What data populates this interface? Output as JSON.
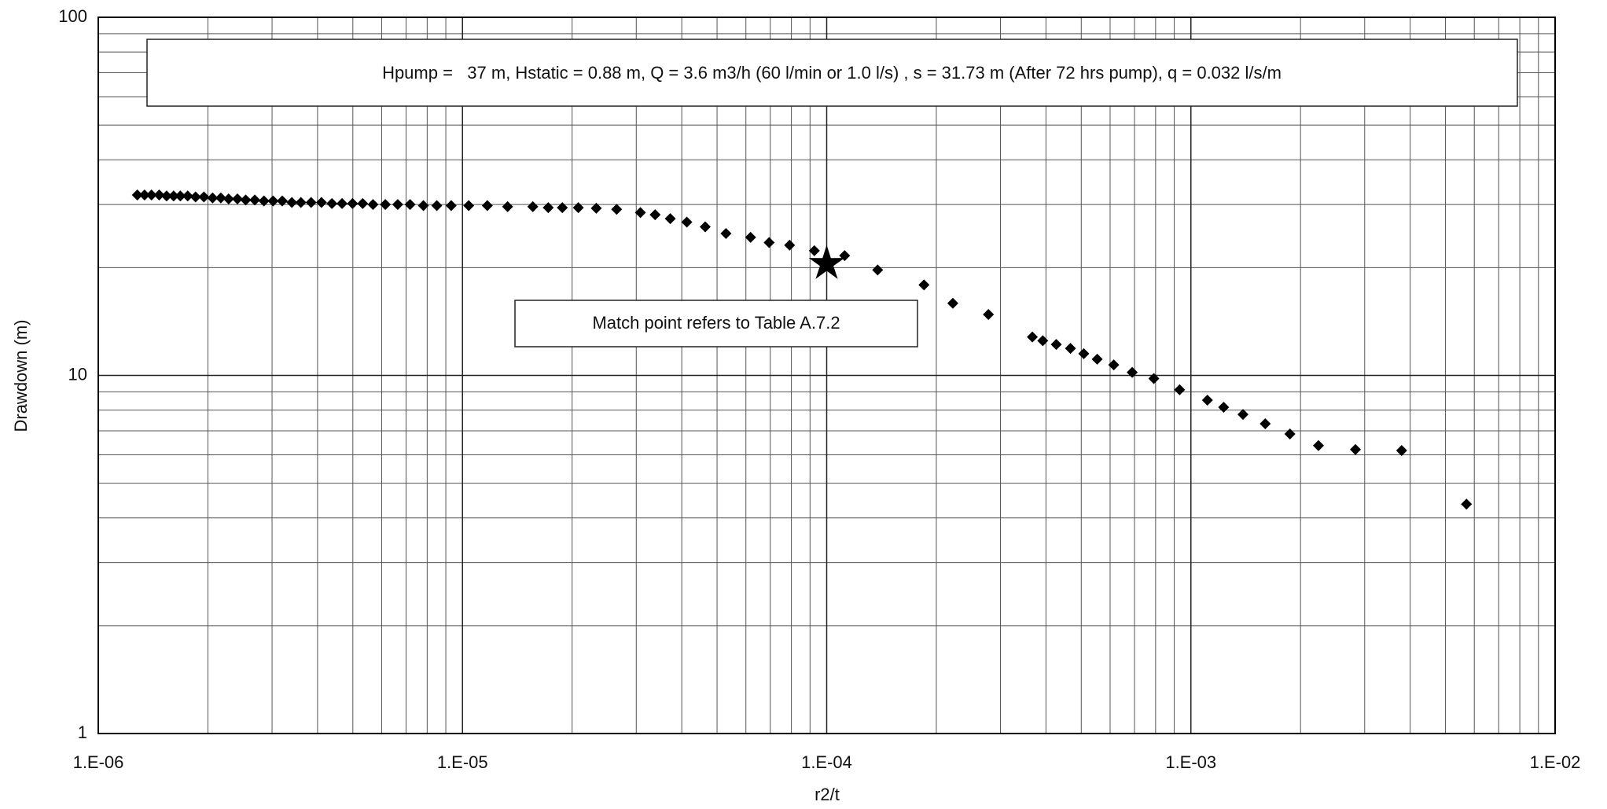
{
  "chart_data": {
    "type": "scatter",
    "annotations": [
      "Hpump =   37 m, Hstatic = 0.88 m, Q = 3.6 m3/h (60 l/min or 1.0 l/s) , s = 31.73 m (After 72 hrs pump), q = 0.032 l/s/m",
      "Match point refers to Table A.7.2"
    ],
    "x_label": "r2/t",
    "y_label": "Drawdown (m)",
    "x": [
      1.28e-06,
      1.34e-06,
      1.4e-06,
      1.47e-06,
      1.54e-06,
      1.61e-06,
      1.68e-06,
      1.76e-06,
      1.85e-06,
      1.95e-06,
      2.06e-06,
      2.17e-06,
      2.28e-06,
      2.41e-06,
      2.54e-06,
      2.69e-06,
      2.85e-06,
      3.02e-06,
      3.2e-06,
      3.4e-06,
      3.6e-06,
      3.84e-06,
      4.1e-06,
      4.38e-06,
      4.67e-06,
      4.99e-06,
      5.32e-06,
      5.68e-06,
      6.14e-06,
      6.64e-06,
      7.18e-06,
      7.81e-06,
      8.5e-06,
      9.31e-06,
      1.04e-05,
      1.17e-05,
      1.33e-05,
      1.56e-05,
      1.72e-05,
      1.88e-05,
      2.08e-05,
      2.33e-05,
      2.65e-05,
      3.08e-05,
      3.38e-05,
      3.72e-05,
      4.13e-05,
      4.64e-05,
      5.29e-05,
      6.18e-05,
      6.95e-05,
      7.91e-05,
      9.25e-05,
      0.000112,
      0.000138,
      0.000185,
      0.000222,
      0.000278,
      0.000367,
      0.000392,
      0.000427,
      0.000467,
      0.000508,
      0.000553,
      0.000614,
      0.00069,
      0.000791,
      0.000931,
      0.00111,
      0.00123,
      0.00139,
      0.0016,
      0.00187,
      0.00224,
      0.00283,
      0.00379,
      0.00571
    ],
    "values": [
      31.9,
      31.9,
      31.9,
      31.9,
      31.7,
      31.7,
      31.7,
      31.7,
      31.5,
      31.5,
      31.3,
      31.3,
      31.1,
      31.1,
      30.9,
      30.9,
      30.7,
      30.7,
      30.7,
      30.4,
      30.4,
      30.4,
      30.4,
      30.2,
      30.2,
      30.2,
      30.2,
      30.0,
      30.0,
      30.0,
      30.0,
      29.8,
      29.8,
      29.8,
      29.8,
      29.8,
      29.6,
      29.6,
      29.4,
      29.4,
      29.4,
      29.3,
      29.1,
      28.5,
      28.1,
      27.4,
      26.8,
      26.0,
      24.9,
      24.3,
      23.5,
      23.1,
      22.3,
      21.6,
      19.7,
      17.9,
      15.9,
      14.8,
      12.8,
      12.5,
      12.2,
      11.9,
      11.5,
      11.1,
      10.7,
      10.2,
      9.8,
      9.12,
      8.53,
      8.15,
      7.78,
      7.33,
      6.86,
      6.37,
      6.21,
      6.17,
      4.37
    ],
    "color": "#000000",
    "match_point": {
      "x": 0.0001,
      "y": 20.5
    },
    "xlim": [
      1e-06,
      0.01
    ],
    "ylim": [
      1,
      100
    ],
    "xticks": [
      {
        "value": 1e-06,
        "label": "1.E-06"
      },
      {
        "value": 1e-05,
        "label": "1.E-05"
      },
      {
        "value": 0.0001,
        "label": "1.E-04"
      },
      {
        "value": 0.001,
        "label": "1.E-03"
      },
      {
        "value": 0.01,
        "label": "1.E-02"
      }
    ],
    "yticks": [
      1,
      10,
      100
    ],
    "xscale": "log",
    "yscale": "log",
    "grid": true
  }
}
